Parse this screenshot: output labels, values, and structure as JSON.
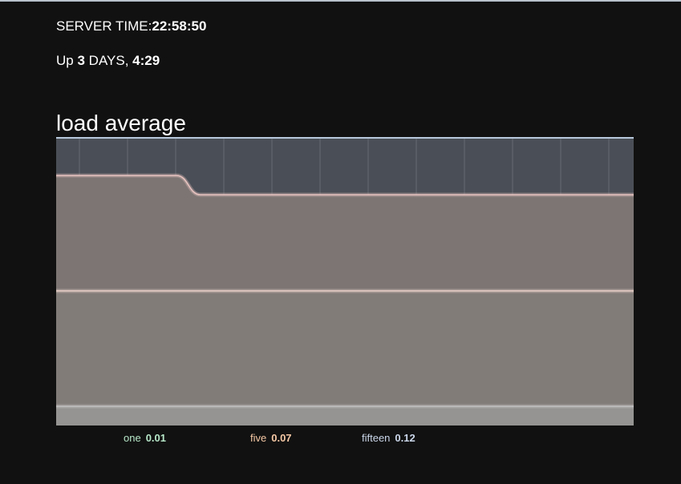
{
  "server_time": {
    "label": "SERVER TIME:",
    "value": "22:58:50"
  },
  "uptime": {
    "prefix": "Up ",
    "days": "3",
    "days_label": " DAYS, ",
    "time": "4:29"
  },
  "colors": {
    "background": "#111111",
    "plot_background": "#4a4f57",
    "fifteen_area": "#7c7574",
    "five_area": "#827c79",
    "one_area": "#959493",
    "fifteen_line": "#e8c4c0",
    "five_line": "#e8cfc7",
    "one_line": "#c2c2c2",
    "legend_one": "#b7e7c9",
    "legend_five": "#f6c9a6",
    "legend_fifteen": "#cbd7ea"
  },
  "chart_data": {
    "type": "area",
    "title": "load average",
    "grid": true,
    "ylim": [
      0,
      0.15
    ],
    "series": [
      {
        "name": "fifteen",
        "values": [
          0.13,
          0.13,
          0.13,
          0.13,
          0.13,
          0.13,
          0.12,
          0.12,
          0.12,
          0.12,
          0.12,
          0.12,
          0.12,
          0.12,
          0.12,
          0.12,
          0.12,
          0.12,
          0.12,
          0.12,
          0.12,
          0.12,
          0.12,
          0.12,
          0.12
        ]
      },
      {
        "name": "five",
        "values": [
          0.07,
          0.07,
          0.07,
          0.07,
          0.07,
          0.07,
          0.07,
          0.07,
          0.07,
          0.07,
          0.07,
          0.07,
          0.07,
          0.07,
          0.07,
          0.07,
          0.07,
          0.07,
          0.07,
          0.07,
          0.07,
          0.07,
          0.07,
          0.07,
          0.07
        ]
      },
      {
        "name": "one",
        "values": [
          0.01,
          0.01,
          0.01,
          0.01,
          0.01,
          0.01,
          0.01,
          0.01,
          0.01,
          0.01,
          0.01,
          0.01,
          0.01,
          0.01,
          0.01,
          0.01,
          0.01,
          0.01,
          0.01,
          0.01,
          0.01,
          0.01,
          0.01,
          0.01,
          0.01
        ]
      }
    ]
  },
  "legend": {
    "one": {
      "label": "one",
      "value": "0.01"
    },
    "five": {
      "label": "five",
      "value": "0.07"
    },
    "fifteen": {
      "label": "fifteen",
      "value": "0.12"
    }
  }
}
